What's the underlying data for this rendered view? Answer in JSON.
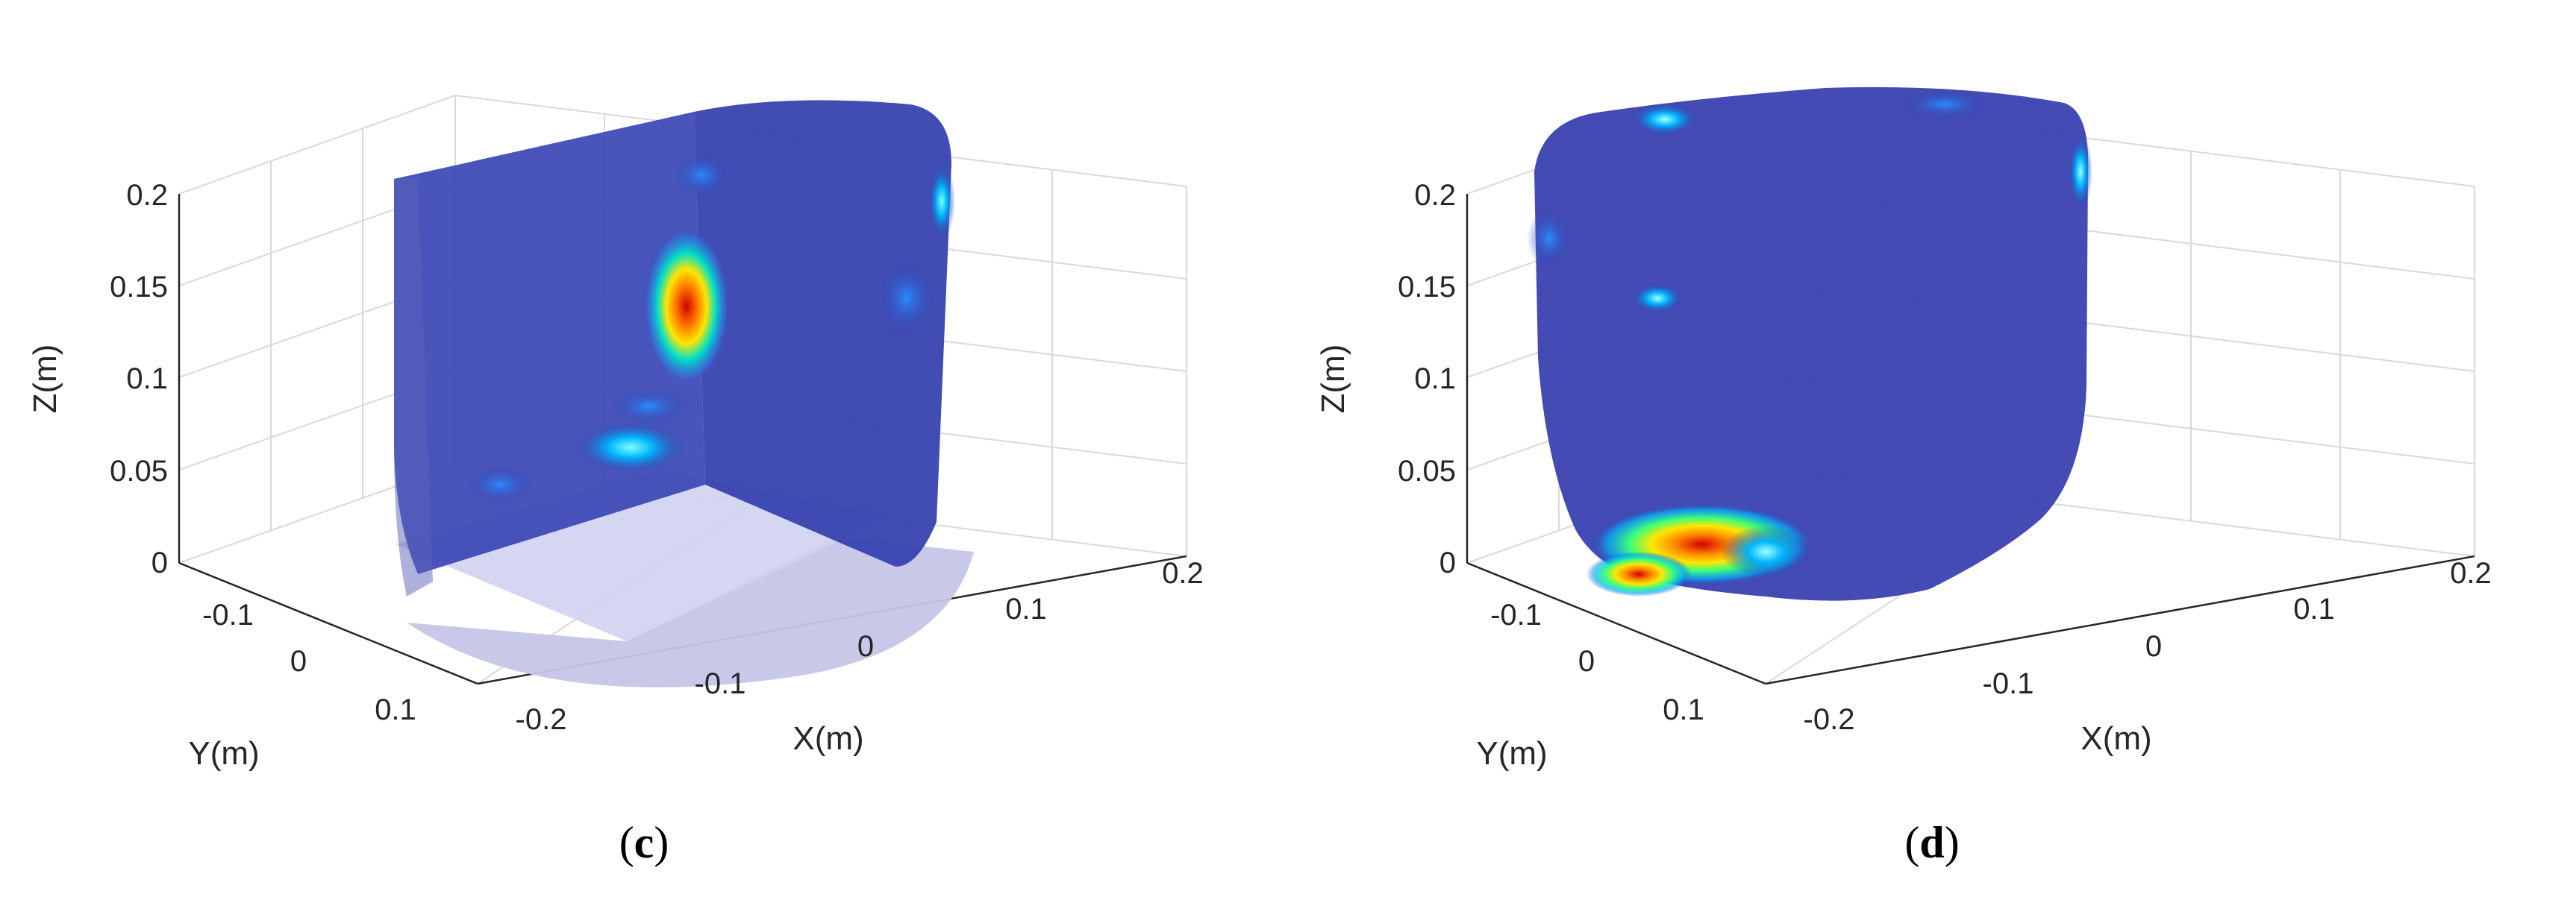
{
  "panels": [
    {
      "caption_letter": "c",
      "chart_data": {
        "type": "3d-volume",
        "title": "",
        "xlabel": "X(m)",
        "ylabel": "Y(m)",
        "zlabel": "Z(m)",
        "x_ticks": [
          "-0.2",
          "-0.1",
          "0",
          "0.1",
          "0.2"
        ],
        "y_ticks": [
          "-0.1",
          "0",
          "0.1"
        ],
        "z_ticks": [
          "0",
          "0.05",
          "0.1",
          "0.15",
          "0.2"
        ],
        "xlim": [
          -0.25,
          0.25
        ],
        "ylim": [
          -0.15,
          0.15
        ],
        "zlim": [
          0,
          0.2
        ],
        "grid": true,
        "hotspots": [
          {
            "x": 0.05,
            "y": 0.0,
            "z": 0.145,
            "intensity": 1.0
          },
          {
            "x": -0.05,
            "y": 0.05,
            "z": 0.05,
            "intensity": 0.45
          },
          {
            "x": 0.15,
            "y": -0.05,
            "z": 0.15,
            "intensity": 0.35
          }
        ]
      }
    },
    {
      "caption_letter": "d",
      "chart_data": {
        "type": "3d-volume",
        "title": "",
        "xlabel": "X(m)",
        "ylabel": "Y(m)",
        "zlabel": "Z(m)",
        "x_ticks": [
          "-0.2",
          "-0.1",
          "0",
          "0.1",
          "0.2"
        ],
        "y_ticks": [
          "-0.1",
          "0",
          "0.1"
        ],
        "z_ticks": [
          "0",
          "0.05",
          "0.1",
          "0.15",
          "0.2"
        ],
        "xlim": [
          -0.25,
          0.25
        ],
        "ylim": [
          -0.15,
          0.15
        ],
        "zlim": [
          0,
          0.2
        ],
        "grid": true,
        "hotspots": [
          {
            "x": -0.05,
            "y": 0.1,
            "z": 0.01,
            "intensity": 1.0
          },
          {
            "x": 0.05,
            "y": 0.0,
            "z": 0.14,
            "intensity": 0.35
          },
          {
            "x": 0.0,
            "y": -0.1,
            "z": 0.2,
            "intensity": 0.3
          }
        ]
      }
    }
  ],
  "colors": {
    "volume_blue": "#2f3aa8",
    "floor_lavender": "#c5c6e8",
    "hot_red": "#d40000",
    "warm_yellow": "#ffe600",
    "cyan": "#00c8ff"
  }
}
